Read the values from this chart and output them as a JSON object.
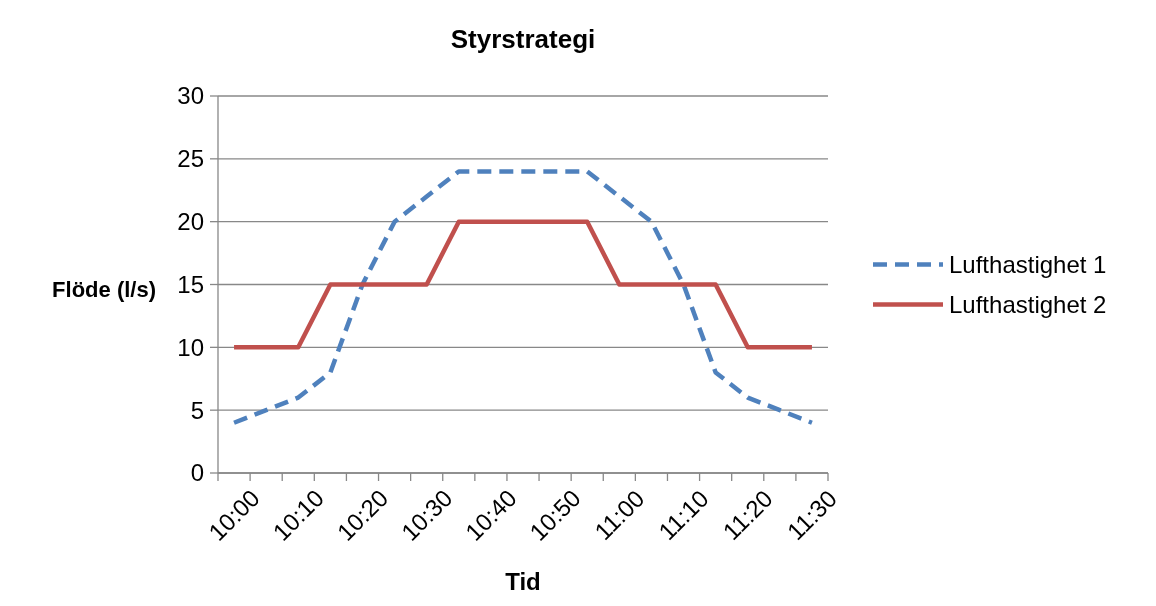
{
  "chart_data": {
    "type": "line",
    "title": "Styrstrategi",
    "xlabel": "Tid",
    "ylabel": "Flöde (l/s)",
    "categories": [
      "10:00",
      null,
      "10:10",
      null,
      "10:20",
      null,
      "10:30",
      null,
      "10:40",
      null,
      "10:50",
      null,
      "11:00",
      null,
      "11:10",
      null,
      "11:20",
      null,
      "11:30"
    ],
    "series": [
      {
        "name": "Lufthastighet 1",
        "color": "#4f81bd",
        "line_style": "dashed",
        "values": [
          4,
          5,
          6,
          8,
          15,
          20,
          22,
          24,
          24,
          24,
          24,
          24,
          22,
          20,
          15,
          8,
          6,
          5,
          4
        ]
      },
      {
        "name": "Lufthastighet 2",
        "color": "#c0504d",
        "line_style": "solid",
        "values": [
          10,
          10,
          10,
          15,
          15,
          15,
          15,
          20,
          20,
          20,
          20,
          20,
          15,
          15,
          15,
          15,
          10,
          10,
          10
        ]
      }
    ],
    "ylim": [
      0,
      30
    ],
    "yticks": [
      0,
      5,
      10,
      15,
      20,
      25,
      30
    ],
    "grid": "y",
    "legend": "right",
    "marker": "none"
  }
}
